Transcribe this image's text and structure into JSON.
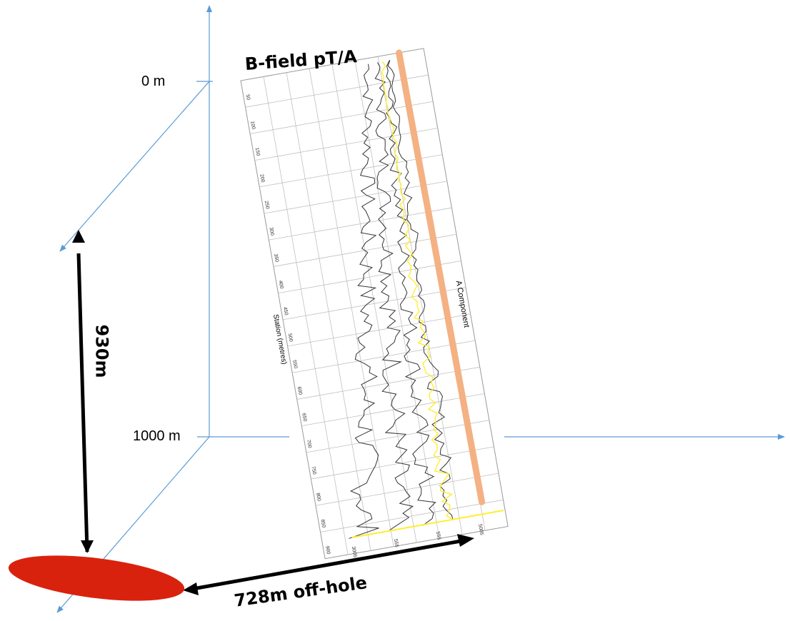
{
  "labels": {
    "depth_top": "0 m",
    "depth_bottom": "1000 m",
    "vertical_distance": "930m",
    "offhole_distance": "728m off-hole",
    "plot_title": "B-field pT/A",
    "component_label": "A Component",
    "station_axis_label": "Station (metres)"
  },
  "station_ticks": [
    "50",
    "100",
    "150",
    "200",
    "250",
    "300",
    "350",
    "400",
    "450",
    "500",
    "550",
    "600",
    "650",
    "700",
    "750",
    "800",
    "850",
    "900"
  ],
  "bottom_ticks": [
    "3005",
    "555",
    "555",
    "5005"
  ],
  "colors": {
    "axis": "#5b9bd5",
    "arrow": "#000000",
    "target": "#d9220e",
    "orange_line": "#f4b183",
    "yellow_line": "#ffee33",
    "grid": "#c0c0c0",
    "trace": "#333333"
  }
}
